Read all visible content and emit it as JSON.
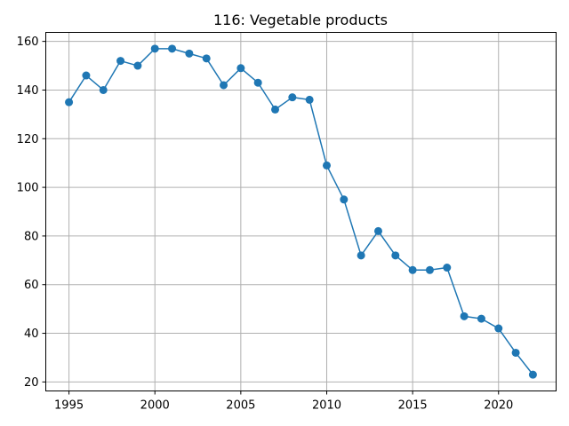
{
  "chart_data": {
    "type": "line",
    "title": "116: Vegetable products",
    "xlabel": "",
    "ylabel": "",
    "grid": true,
    "xlim": [
      1993.65,
      2023.35
    ],
    "ylim": [
      16.3,
      163.7
    ],
    "x_ticks": [
      1995,
      2000,
      2005,
      2010,
      2015,
      2020
    ],
    "y_ticks": [
      20,
      40,
      60,
      80,
      100,
      120,
      140,
      160
    ],
    "series": [
      {
        "color": "#1f77b4",
        "marker": "circle",
        "x": [
          1995,
          1996,
          1997,
          1998,
          1999,
          2000,
          2001,
          2002,
          2003,
          2004,
          2005,
          2006,
          2007,
          2008,
          2009,
          2010,
          2011,
          2012,
          2013,
          2014,
          2015,
          2016,
          2017,
          2018,
          2019,
          2020,
          2021,
          2022
        ],
        "y": [
          135,
          146,
          140,
          152,
          150,
          157,
          157,
          155,
          153,
          142,
          149,
          143,
          132,
          137,
          136,
          109,
          95,
          72,
          82,
          72,
          66,
          66,
          67,
          47,
          46,
          42,
          32,
          23
        ]
      }
    ]
  }
}
